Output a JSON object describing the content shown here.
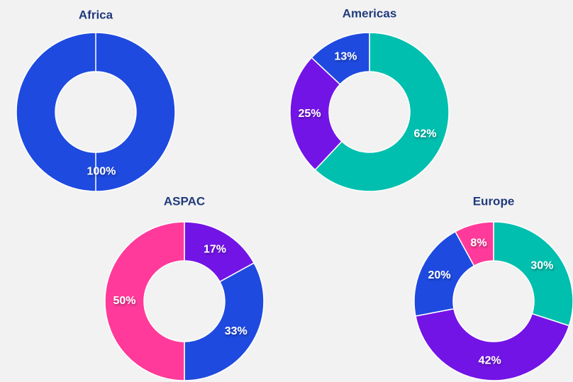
{
  "chart_data": [
    {
      "type": "pie",
      "title": "Africa",
      "values": [
        100
      ],
      "value_labels": [
        "100%"
      ],
      "colors": [
        "#1e4ae0"
      ],
      "donut": true
    },
    {
      "type": "pie",
      "title": "Americas",
      "values": [
        62,
        25,
        13
      ],
      "value_labels": [
        "62%",
        "25%",
        "13%"
      ],
      "colors": [
        "#00bfae",
        "#7314e6",
        "#1e4ae0"
      ],
      "donut": true
    },
    {
      "type": "pie",
      "title": "ASPAC",
      "values": [
        17,
        33,
        50
      ],
      "value_labels": [
        "17%",
        "33%",
        "50%"
      ],
      "colors": [
        "#7314e6",
        "#1e4ae0",
        "#ff3a9a"
      ],
      "donut": true
    },
    {
      "type": "pie",
      "title": "Europe",
      "values": [
        30,
        42,
        20,
        8
      ],
      "value_labels": [
        "30%",
        "42%",
        "20%",
        "8%"
      ],
      "colors": [
        "#00bfae",
        "#7314e6",
        "#1e4ae0",
        "#ff3a9a"
      ],
      "donut": true
    }
  ]
}
